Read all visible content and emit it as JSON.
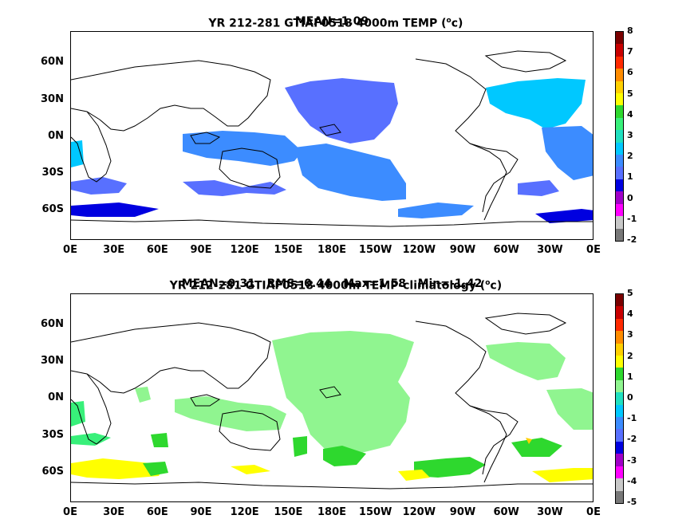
{
  "panels": [
    {
      "title_line1": "YR 212-281 GTIAF0518 4000m TEMP (",
      "title_unit": "c)",
      "title_line2": "MEAN=1.09",
      "colorbar_labels": [
        "8",
        "7",
        "6",
        "5",
        "4",
        "3",
        "2",
        "1",
        "0",
        "-1",
        "-2"
      ],
      "colorbar_colors": [
        "#7a0000",
        "#c80000",
        "#ff2a00",
        "#ff8c00",
        "#ffd000",
        "#ffff00",
        "#2ed82e",
        "#38f07a",
        "#20e0c0",
        "#00c8ff",
        "#3c8cff",
        "#5870ff",
        "#0000e0",
        "#a000c8",
        "#ff00ff",
        "#c8c8c8",
        "#787878"
      ],
      "anomaly": false
    },
    {
      "title_line1": "YR 212-281 GTIAF0518 4000m TEMP-climatology (",
      "title_unit": "c)",
      "title_line2": "MEAN=0.31   RMS=0.44   Max=1.58   Min=-1.42",
      "colorbar_labels": [
        "5",
        "4",
        "3",
        "2",
        "1",
        "0",
        "-1",
        "-2",
        "-3",
        "-4",
        "-5"
      ],
      "colorbar_colors": [
        "#7a0000",
        "#c80000",
        "#ff2a00",
        "#ff8c00",
        "#ffd000",
        "#ffff00",
        "#2ed82e",
        "#90f590",
        "#20e0c0",
        "#00c8ff",
        "#3c8cff",
        "#5870ff",
        "#0000e0",
        "#a000c8",
        "#ff00ff",
        "#c8c8c8",
        "#787878"
      ],
      "anomaly": true
    }
  ],
  "lat_labels": [
    "60N",
    "30N",
    "0N",
    "30S",
    "60S"
  ],
  "lon_labels": [
    "0E",
    "30E",
    "60E",
    "90E",
    "120E",
    "150E",
    "180E",
    "150W",
    "120W",
    "90W",
    "60W",
    "30W",
    "0E"
  ],
  "superscript": "o"
}
